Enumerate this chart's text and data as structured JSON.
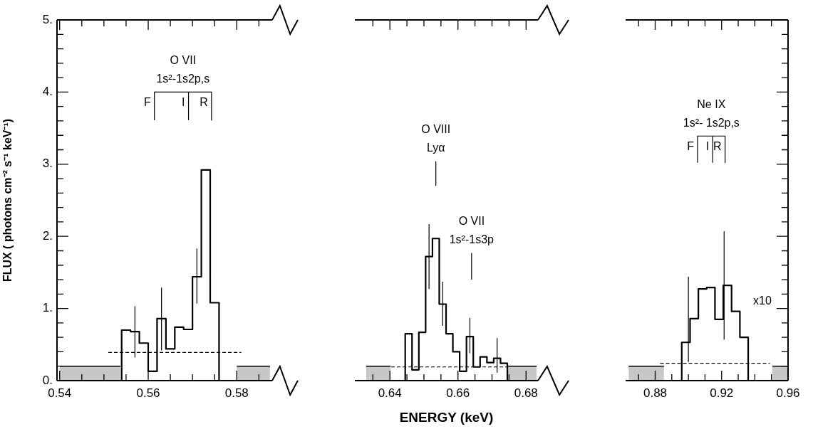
{
  "chart_data": [
    {
      "type": "histogram",
      "ylabel": "FLUX ( photons cm⁻² s⁻¹ keV⁻¹)",
      "xlim": [
        0.5394,
        0.588
      ],
      "xticks": [
        0.54,
        {
          "value": 0.545,
          "label": null
        },
        {
          "value": 0.55,
          "label": null
        },
        {
          "value": 0.555,
          "label": null
        },
        0.56,
        {
          "value": 0.565,
          "label": null
        },
        {
          "value": 0.57,
          "label": null
        },
        {
          "value": 0.575,
          "label": null
        },
        0.58,
        {
          "value": 0.585,
          "label": null
        }
      ],
      "ylim": [
        0,
        5
      ],
      "yticks": [
        {
          "value": 0,
          "label": "0."
        },
        {
          "value": 0.2,
          "label": null
        },
        {
          "value": 0.4,
          "label": null
        },
        {
          "value": 0.6,
          "label": null
        },
        {
          "value": 0.8,
          "label": null
        },
        {
          "value": 1,
          "label": "1."
        },
        {
          "value": 1.2,
          "label": null
        },
        {
          "value": 1.4,
          "label": null
        },
        {
          "value": 1.6,
          "label": null
        },
        {
          "value": 1.8,
          "label": null
        },
        {
          "value": 2,
          "label": "2."
        },
        {
          "value": 2.2,
          "label": null
        },
        {
          "value": 2.4,
          "label": null
        },
        {
          "value": 2.6,
          "label": null
        },
        {
          "value": 2.8,
          "label": null
        },
        {
          "value": 3,
          "label": "3."
        },
        {
          "value": 3.2,
          "label": null
        },
        {
          "value": 3.4,
          "label": null
        },
        {
          "value": 3.6,
          "label": null
        },
        {
          "value": 3.8,
          "label": null
        },
        {
          "value": 4,
          "label": "4."
        },
        {
          "value": 4.2,
          "label": null
        },
        {
          "value": 4.4,
          "label": null
        },
        {
          "value": 4.6,
          "label": null
        },
        {
          "value": 4.8,
          "label": null
        },
        {
          "value": 5,
          "label": "5."
        }
      ],
      "series": [
        {
          "type": "histogram",
          "color": "#000000",
          "bins": [
            0.554,
            0.556,
            0.558,
            0.56,
            0.562,
            0.564,
            0.566,
            0.568,
            0.57,
            0.572,
            0.574,
            0.576
          ],
          "values": [
            0.7,
            0.68,
            0.52,
            0.13,
            0.86,
            0.44,
            0.74,
            0.71,
            1.44,
            2.92,
            1.08
          ]
        },
        {
          "type": "line",
          "color": "#000000",
          "x": [
            0.557,
            0.557
          ],
          "values": [
            0.32,
            1.03
          ]
        },
        {
          "type": "line",
          "color": "#000000",
          "x": [
            0.563,
            0.563
          ],
          "values": [
            0.42,
            1.29
          ]
        },
        {
          "type": "line",
          "color": "#000000",
          "x": [
            0.571,
            0.571
          ],
          "values": [
            1.07,
            1.83
          ]
        },
        {
          "type": "line",
          "color": "#000000",
          "line_style": "dashed",
          "x": [
            0.551,
            0.581
          ],
          "values": [
            0.39,
            0.39
          ]
        },
        {
          "type": "line",
          "color": "#000000",
          "x": [
            0.5614,
            0.5614,
            0.5743,
            0.5743
          ],
          "values": [
            3.61,
            4.0,
            4.0,
            3.61
          ]
        },
        {
          "type": "line",
          "color": "#000000",
          "x": [
            0.5691,
            0.5691
          ],
          "values": [
            3.61,
            4.0
          ]
        },
        {
          "type": "area",
          "color": "#000000",
          "x": [
            0.54,
            0.5537
          ],
          "values": [
            0.2,
            0.2
          ]
        },
        {
          "type": "area",
          "color": "#000000",
          "x": [
            0.58,
            0.5875
          ],
          "values": [
            0.2,
            0.2
          ]
        }
      ],
      "annotations": [
        {
          "text": "O VII",
          "x": 0.56785,
          "y": 4.0
        },
        {
          "text": "1s²-1s2p,s",
          "x": 0.56785,
          "y": 4.0
        },
        {
          "text": "F",
          "x": 0.5614,
          "y": 4.0
        },
        {
          "text": "I",
          "x": 0.5691,
          "y": 4.0
        },
        {
          "text": "R",
          "x": 0.5743,
          "y": 4.0
        }
      ]
    },
    {
      "type": "histogram",
      "xlabel": "ENERGY (keV)",
      "tick_labels": "x",
      "xlim": [
        0.6297,
        0.6835
      ],
      "xticks": [
        {
          "value": 0.635,
          "label": null
        },
        0.64,
        {
          "value": 0.645,
          "label": null
        },
        {
          "value": 0.65,
          "label": null
        },
        {
          "value": 0.655,
          "label": null
        },
        0.66,
        {
          "value": 0.665,
          "label": null
        },
        {
          "value": 0.67,
          "label": null
        },
        {
          "value": 0.675,
          "label": null
        },
        0.68
      ],
      "ylim": [
        0,
        5
      ],
      "series": [
        {
          "type": "histogram",
          "color": "#000000",
          "bins": [
            0.6445,
            0.6465,
            0.6485,
            0.6505,
            0.6525,
            0.6545,
            0.6565,
            0.6585,
            0.6605,
            0.6625,
            0.6645,
            0.6665,
            0.6685,
            0.6705,
            0.6725,
            0.6745
          ],
          "values": [
            0.65,
            0.15,
            0.67,
            1.72,
            1.97,
            1.06,
            0.65,
            0.4,
            0.13,
            0.61,
            0.19,
            0.33,
            0.25,
            0.31,
            0.24
          ]
        },
        {
          "type": "line",
          "color": "#000000",
          "x": [
            0.6515,
            0.6515
          ],
          "values": [
            1.27,
            2.17
          ]
        },
        {
          "type": "line",
          "color": "#000000",
          "x": [
            0.6555,
            0.6555
          ],
          "values": [
            0.76,
            1.37
          ]
        },
        {
          "type": "line",
          "color": "#000000",
          "x": [
            0.6635,
            0.6635
          ],
          "values": [
            0.38,
            0.87
          ]
        },
        {
          "type": "line",
          "color": "#000000",
          "x": [
            0.6715,
            0.6715
          ],
          "values": [
            0.11,
            0.59
          ]
        },
        {
          "type": "line",
          "color": "#000000",
          "line_style": "dashed",
          "x": [
            0.6404,
            0.6745
          ],
          "values": [
            0.19,
            0.19
          ]
        },
        {
          "type": "line",
          "color": "#000000",
          "x": [
            0.6535,
            0.6535
          ],
          "values": [
            2.7,
            3.04
          ]
        },
        {
          "type": "line",
          "color": "#000000",
          "x": [
            0.664,
            0.664
          ],
          "values": [
            1.4,
            1.77
          ]
        },
        {
          "type": "area",
          "color": "#000000",
          "x": [
            0.633,
            0.6402
          ],
          "values": [
            0.2,
            0.2
          ]
        },
        {
          "type": "area",
          "color": "#000000",
          "x": [
            0.6745,
            0.6831
          ],
          "values": [
            0.2,
            0.2
          ]
        }
      ],
      "annotations": [
        {
          "text": "O VIII",
          "x": 0.6535,
          "y": 3.04
        },
        {
          "text": "Lyα",
          "x": 0.6535,
          "y": 3.04
        },
        {
          "text": "O VII",
          "x": 0.664,
          "y": 1.77
        },
        {
          "text": "1s²-1s3p",
          "x": 0.664,
          "y": 1.77
        }
      ]
    },
    {
      "type": "histogram",
      "tick_labels": "x",
      "xlim": [
        0.8622,
        0.96
      ],
      "xticks": [
        {
          "value": 0.87,
          "label": null
        },
        0.88,
        {
          "value": 0.89,
          "label": null
        },
        {
          "value": 0.9,
          "label": null
        },
        {
          "value": 0.91,
          "label": null
        },
        0.92,
        {
          "value": 0.93,
          "label": null
        },
        {
          "value": 0.94,
          "label": null
        },
        {
          "value": 0.95,
          "label": null
        },
        0.96
      ],
      "ylim": [
        0,
        5
      ],
      "series": [
        {
          "type": "histogram",
          "color": "#000000",
          "bins": [
            0.896,
            0.901,
            0.906,
            0.911,
            0.916,
            0.921,
            0.926,
            0.931,
            0.936
          ],
          "values": [
            0.53,
            0.86,
            1.27,
            1.29,
            0.85,
            1.32,
            0.96,
            0.6
          ]
        },
        {
          "type": "line",
          "color": "#000000",
          "x": [
            0.9,
            0.9
          ],
          "values": [
            0.26,
            1.44
          ]
        },
        {
          "type": "line",
          "color": "#000000",
          "x": [
            0.9215,
            0.9215
          ],
          "values": [
            0.57,
            2.07
          ]
        },
        {
          "type": "line",
          "color": "#000000",
          "line_style": "dashed",
          "x": [
            0.883,
            0.949
          ],
          "values": [
            0.24,
            0.24
          ]
        },
        {
          "type": "line",
          "color": "#000000",
          "x": [
            0.9055,
            0.9055,
            0.9221,
            0.9221
          ],
          "values": [
            3.02,
            3.39,
            3.39,
            3.02
          ]
        },
        {
          "type": "line",
          "color": "#000000",
          "x": [
            0.9146,
            0.9146
          ],
          "values": [
            3.02,
            3.39
          ]
        },
        {
          "type": "area",
          "color": "#000000",
          "x": [
            0.864,
            0.8853
          ],
          "values": [
            0.2,
            0.2
          ]
        },
        {
          "type": "area",
          "color": "#000000",
          "x": [
            0.9505,
            0.96
          ],
          "values": [
            0.2,
            0.2
          ]
        }
      ],
      "annotations": [
        {
          "text": "Ne IX",
          "x": 0.9138,
          "y": 3.39
        },
        {
          "text": "1s²- 1s2p,s",
          "x": 0.9138,
          "y": 3.39
        },
        {
          "text": "F",
          "x": 0.9055,
          "y": 3.39
        },
        {
          "text": "I",
          "x": 0.9146,
          "y": 3.39
        },
        {
          "text": "R",
          "x": 0.9221,
          "y": 3.39
        },
        "x10"
      ]
    }
  ]
}
